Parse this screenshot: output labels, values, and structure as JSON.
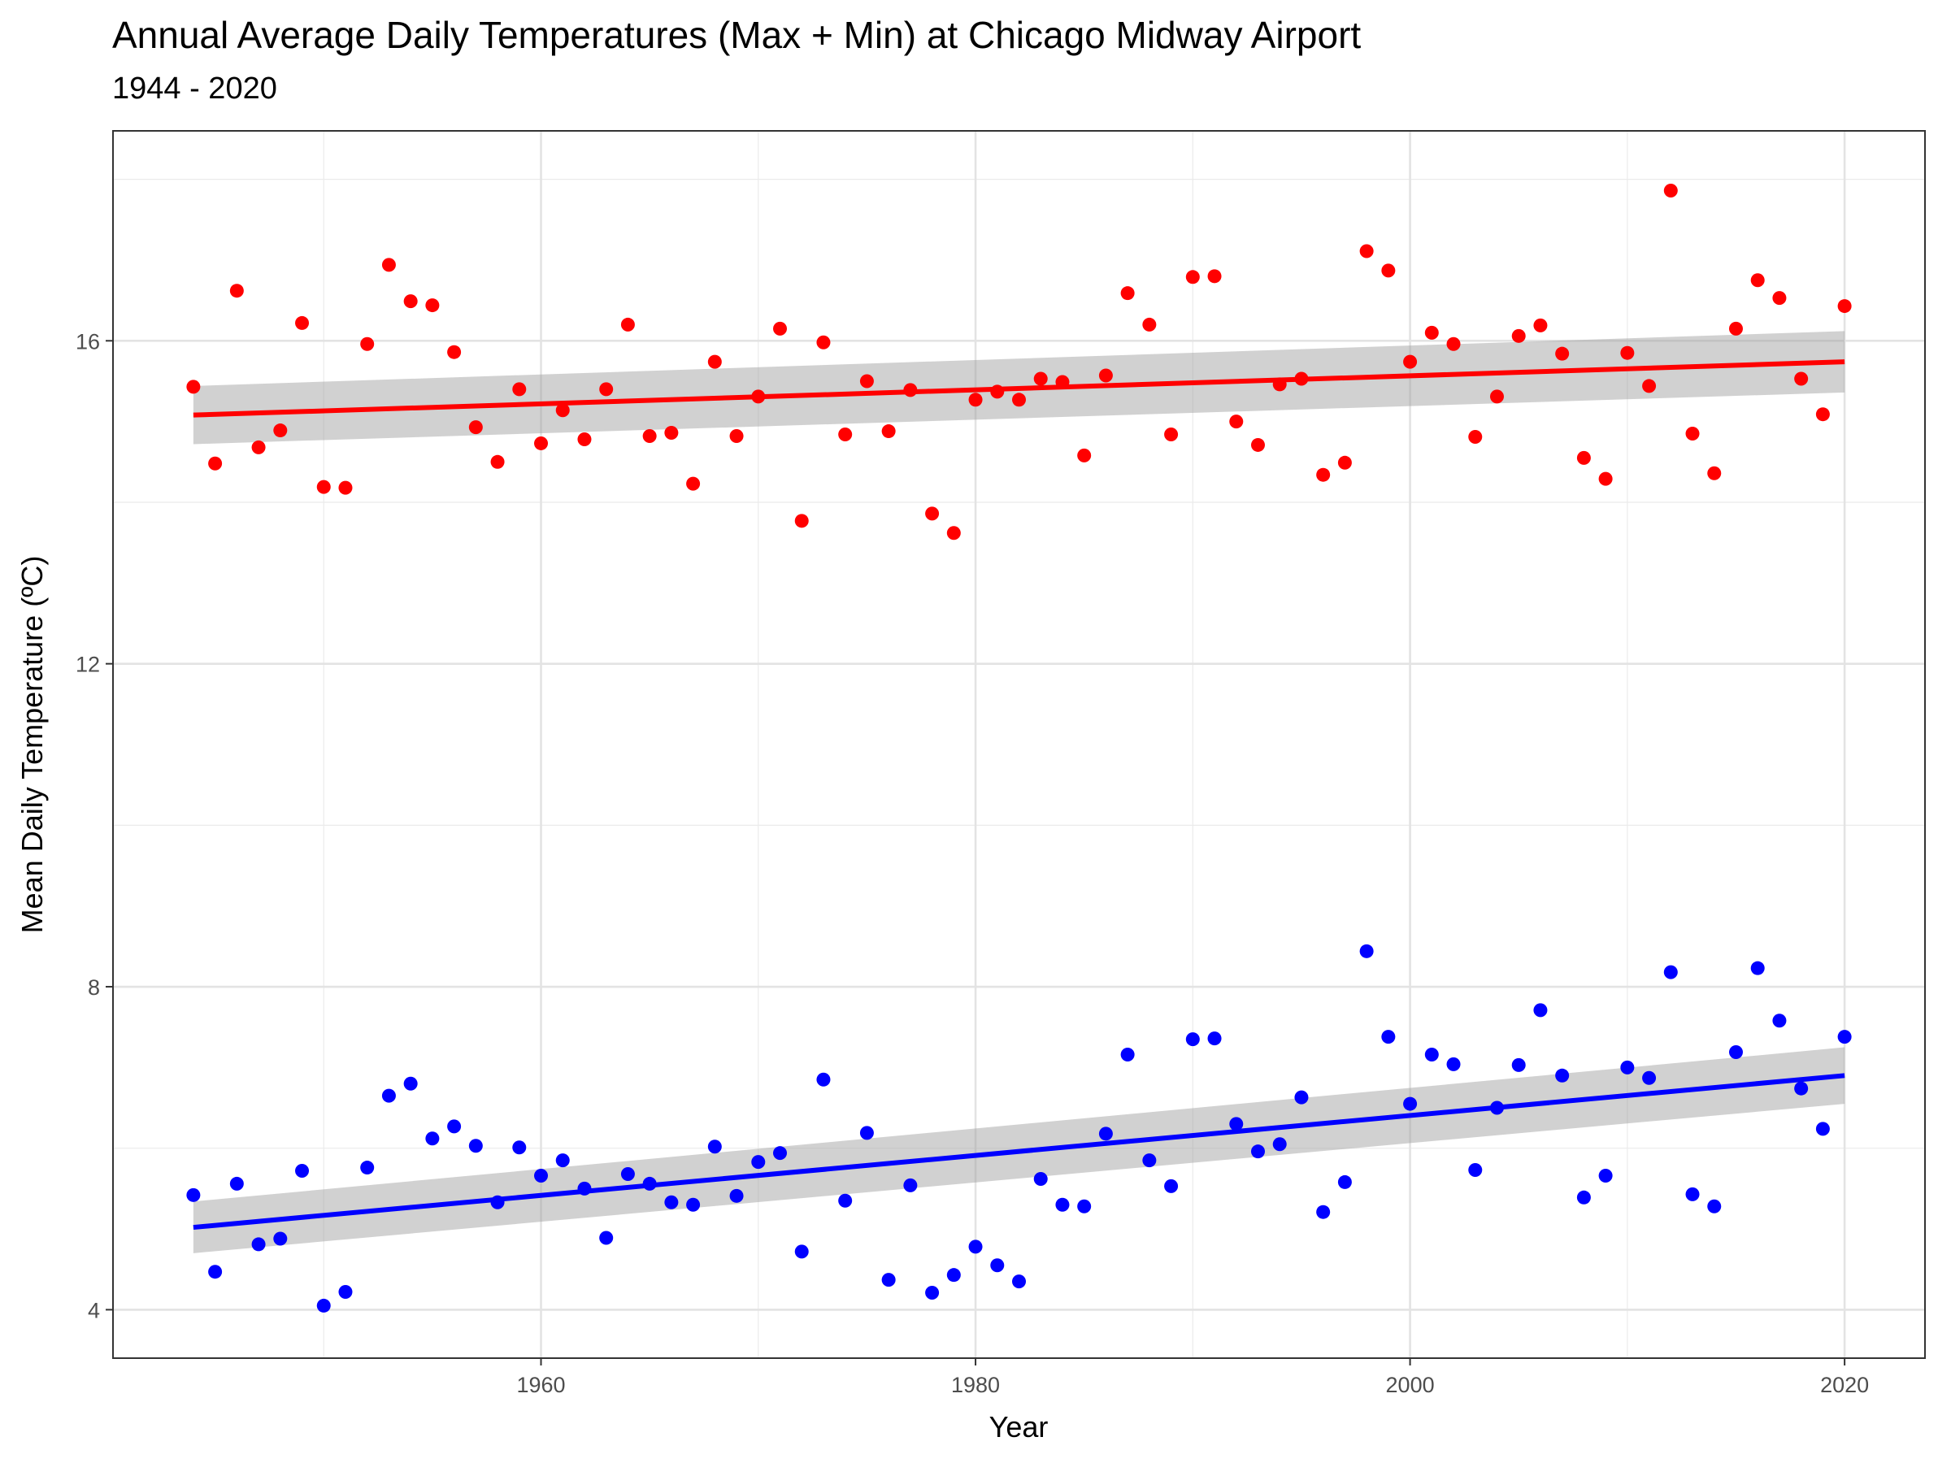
{
  "chart_data": {
    "type": "scatter",
    "title": "Annual Average Daily Temperatures (Max + Min) at Chicago Midway Airport",
    "subtitle": "1944 - 2020",
    "xlabel": "Year",
    "ylabel": "Mean Daily Temperature (ºC)",
    "xlim": [
      1940.3,
      2023.7
    ],
    "ylim": [
      3.4,
      18.6
    ],
    "x_ticks": [
      1960,
      1980,
      2000,
      2020
    ],
    "y_ticks": [
      4,
      8,
      12,
      16
    ],
    "grid": true,
    "legend": "none",
    "series": [
      {
        "color": "#ff0000",
        "x": [
          1944,
          1945,
          1946,
          1947,
          1948,
          1949,
          1950,
          1951,
          1952,
          1953,
          1954,
          1955,
          1956,
          1957,
          1958,
          1959,
          1960,
          1961,
          1962,
          1963,
          1964,
          1965,
          1966,
          1967,
          1968,
          1969,
          1970,
          1971,
          1972,
          1973,
          1974,
          1975,
          1976,
          1977,
          1978,
          1979,
          1980,
          1981,
          1982,
          1983,
          1984,
          1985,
          1986,
          1987,
          1988,
          1989,
          1990,
          1991,
          1992,
          1993,
          1994,
          1995,
          1996,
          1997,
          1998,
          1999,
          2000,
          2001,
          2002,
          2003,
          2004,
          2005,
          2006,
          2007,
          2008,
          2009,
          2010,
          2011,
          2012,
          2013,
          2014,
          2015,
          2016,
          2017,
          2018,
          2019,
          2020
        ],
        "y": [
          15.43,
          14.48,
          16.62,
          14.68,
          14.89,
          16.22,
          14.19,
          14.18,
          15.96,
          16.94,
          16.49,
          16.44,
          15.86,
          14.93,
          14.5,
          15.4,
          14.73,
          15.14,
          14.78,
          15.4,
          16.2,
          14.82,
          14.86,
          14.23,
          15.74,
          14.82,
          15.31,
          16.15,
          13.77,
          15.98,
          14.84,
          15.5,
          14.88,
          15.39,
          13.86,
          13.62,
          15.27,
          15.37,
          15.27,
          15.53,
          15.49,
          14.58,
          15.57,
          16.59,
          16.2,
          14.84,
          16.79,
          16.8,
          15.0,
          14.71,
          15.46,
          15.53,
          14.34,
          14.49,
          17.11,
          16.87,
          15.74,
          16.1,
          15.96,
          14.81,
          15.31,
          16.06,
          16.19,
          15.84,
          14.55,
          14.29,
          15.85,
          15.44,
          17.86,
          14.85,
          14.36,
          16.15,
          16.75,
          16.53,
          15.53,
          15.09,
          16.43
        ],
        "trend": {
          "x": [
            1944,
            2020
          ],
          "y": [
            15.08,
            15.74
          ],
          "ci_lower": [
            14.72,
            15.36
          ],
          "ci_upper": [
            15.44,
            16.12
          ]
        }
      },
      {
        "color": "#0000ff",
        "x": [
          1944,
          1945,
          1946,
          1947,
          1948,
          1949,
          1950,
          1951,
          1952,
          1953,
          1954,
          1955,
          1956,
          1957,
          1958,
          1959,
          1960,
          1961,
          1962,
          1963,
          1964,
          1965,
          1966,
          1967,
          1968,
          1969,
          1970,
          1971,
          1972,
          1973,
          1974,
          1975,
          1976,
          1977,
          1978,
          1979,
          1980,
          1981,
          1982,
          1983,
          1984,
          1985,
          1986,
          1987,
          1988,
          1989,
          1990,
          1991,
          1992,
          1993,
          1994,
          1995,
          1996,
          1997,
          1998,
          1999,
          2000,
          2001,
          2002,
          2003,
          2004,
          2005,
          2006,
          2007,
          2008,
          2009,
          2010,
          2011,
          2012,
          2013,
          2014,
          2015,
          2016,
          2017,
          2018,
          2019,
          2020
        ],
        "y": [
          5.42,
          4.47,
          5.56,
          4.81,
          4.88,
          5.72,
          4.05,
          4.22,
          5.76,
          6.65,
          6.8,
          6.12,
          6.27,
          6.03,
          5.33,
          6.01,
          5.66,
          5.85,
          5.5,
          4.89,
          5.68,
          5.56,
          5.33,
          5.3,
          6.02,
          5.41,
          5.83,
          5.94,
          4.72,
          6.85,
          5.35,
          6.19,
          4.37,
          5.54,
          4.21,
          4.43,
          4.78,
          4.55,
          4.35,
          5.62,
          5.3,
          5.28,
          6.18,
          7.16,
          5.85,
          5.53,
          7.35,
          7.36,
          6.3,
          5.96,
          6.05,
          6.63,
          5.21,
          5.58,
          8.44,
          7.38,
          6.55,
          7.16,
          7.04,
          5.73,
          6.5,
          7.03,
          7.71,
          6.9,
          5.39,
          5.66,
          7.0,
          6.87,
          8.18,
          5.43,
          5.28,
          7.19,
          8.23,
          7.58,
          6.74,
          6.24,
          7.38
        ],
        "trend": {
          "x": [
            1944,
            2020
          ],
          "y": [
            5.02,
            6.9
          ],
          "ci_lower": [
            4.7,
            6.55
          ],
          "ci_upper": [
            5.34,
            7.25
          ]
        }
      }
    ]
  }
}
